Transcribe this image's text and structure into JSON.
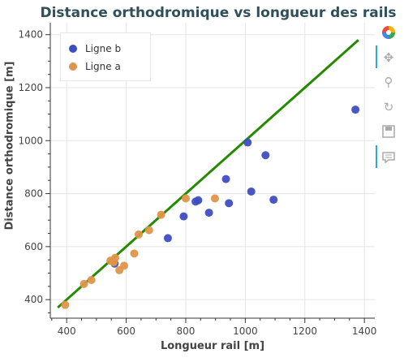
{
  "chart_data": {
    "type": "scatter",
    "title": "Distance orthodromique vs longueur des rails",
    "xlabel": "Longueur rail [m]",
    "ylabel": "Distance orthodromique [m]",
    "xlim": [
      345,
      1435
    ],
    "ylim": [
      330,
      1445
    ],
    "xticks": [
      400,
      600,
      800,
      1000,
      1200,
      1400
    ],
    "yticks": [
      400,
      600,
      800,
      1000,
      1200,
      1400
    ],
    "grid": true,
    "legend_position": "top-left",
    "series": [
      {
        "name": "Ligne b",
        "color": "#3e4ec2",
        "points": [
          [
            1370,
            1117
          ],
          [
            1008,
            993
          ],
          [
            1068,
            945
          ],
          [
            935,
            855
          ],
          [
            833,
            770
          ],
          [
            842,
            775
          ],
          [
            1020,
            808
          ],
          [
            1095,
            777
          ],
          [
            945,
            764
          ],
          [
            878,
            728
          ],
          [
            793,
            714
          ],
          [
            740,
            632
          ],
          [
            561,
            536
          ]
        ]
      },
      {
        "name": "Ligne a",
        "color": "#e0954a",
        "points": [
          [
            395,
            380
          ],
          [
            458,
            459
          ],
          [
            483,
            474
          ],
          [
            547,
            547
          ],
          [
            558,
            541
          ],
          [
            563,
            558
          ],
          [
            577,
            511
          ],
          [
            593,
            528
          ],
          [
            627,
            574
          ],
          [
            642,
            646
          ],
          [
            677,
            662
          ],
          [
            717,
            720
          ],
          [
            800,
            782
          ],
          [
            898,
            782
          ]
        ]
      },
      {
        "name": "",
        "type": "line",
        "color": "#228b00",
        "points": [
          [
            370,
            370
          ],
          [
            1380,
            1380
          ]
        ]
      }
    ]
  },
  "toolbar": {
    "tools": [
      "bokeh-logo-icon",
      "pan-icon",
      "wheel-zoom-icon",
      "reset-icon",
      "save-icon",
      "hover-icon"
    ]
  }
}
